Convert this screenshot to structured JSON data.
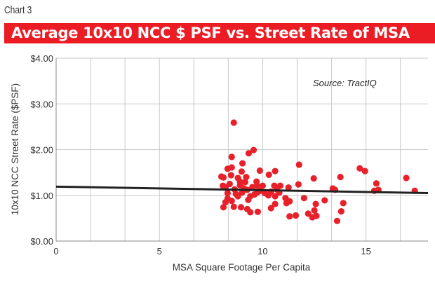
{
  "chart_label": "Chart 3",
  "chart_data": {
    "type": "scatter",
    "title": "Average 10x10 NCC $ PSF vs. Street Rate of MSA",
    "xlabel": "MSA Square Footage Per Capita",
    "ylabel": "10x10 NCC Street Rate ($PSF)",
    "annotation": "Source: TractIQ",
    "xlim": [
      0,
      18
    ],
    "ylim": [
      0,
      4
    ],
    "x_ticks": [
      {
        "v": 0,
        "label": "0"
      },
      {
        "v": 5,
        "label": "5"
      },
      {
        "v": 10,
        "label": "10"
      },
      {
        "v": 15,
        "label": "15"
      }
    ],
    "y_ticks": [
      {
        "v": 0,
        "label": "$0.00"
      },
      {
        "v": 1,
        "label": "$1.00"
      },
      {
        "v": 2,
        "label": "$2.00"
      },
      {
        "v": 3,
        "label": "$3.00"
      },
      {
        "v": 4,
        "label": "$4.00"
      }
    ],
    "grid": true,
    "point_color": "#e8202a",
    "trendline": {
      "x": [
        0,
        18
      ],
      "y": [
        1.19,
        1.05
      ],
      "color": "#222222"
    },
    "points": [
      [
        8.6,
        2.59
      ],
      [
        9.56,
        1.99
      ],
      [
        9.32,
        1.92
      ],
      [
        8.5,
        1.84
      ],
      [
        9.02,
        1.7
      ],
      [
        9.86,
        1.54
      ],
      [
        8.3,
        1.58
      ],
      [
        8.5,
        1.61
      ],
      [
        8.98,
        1.52
      ],
      [
        10.6,
        1.53
      ],
      [
        10.3,
        1.45
      ],
      [
        8.1,
        1.39
      ],
      [
        8.47,
        1.44
      ],
      [
        8.8,
        1.38
      ],
      [
        9.15,
        1.29
      ],
      [
        8.07,
        1.21
      ],
      [
        8.64,
        1.13
      ],
      [
        9.25,
        1.12
      ],
      [
        9.73,
        1.21
      ],
      [
        9.73,
        1.06
      ],
      [
        10.56,
        1.21
      ],
      [
        10.68,
        1.13
      ],
      [
        10.6,
        0.98
      ],
      [
        10.27,
        1.0
      ],
      [
        8.8,
        0.98
      ],
      [
        9.3,
        0.9
      ],
      [
        8.3,
        0.93
      ],
      [
        8.1,
        0.74
      ],
      [
        8.6,
        0.75
      ],
      [
        8.95,
        0.74
      ],
      [
        9.25,
        0.7
      ],
      [
        9.4,
        0.63
      ],
      [
        9.76,
        0.64
      ],
      [
        10.4,
        0.72
      ],
      [
        10.6,
        0.81
      ],
      [
        8.0,
        1.41
      ],
      [
        8.2,
        1.18
      ],
      [
        8.4,
        1.25
      ],
      [
        8.9,
        1.22
      ],
      [
        9.1,
        1.15
      ],
      [
        9.5,
        1.18
      ],
      [
        9.9,
        1.1
      ],
      [
        10.0,
        1.21
      ],
      [
        8.3,
        1.05
      ],
      [
        8.7,
        1.03
      ],
      [
        9.0,
        1.06
      ],
      [
        9.6,
        1.02
      ],
      [
        10.1,
        1.05
      ],
      [
        10.4,
        1.08
      ],
      [
        8.2,
        0.85
      ],
      [
        8.5,
        0.88
      ],
      [
        9.4,
        0.98
      ],
      [
        9.7,
        1.3
      ],
      [
        10.8,
        1.06
      ],
      [
        10.85,
        1.21
      ],
      [
        11.25,
        1.17
      ],
      [
        11.76,
        1.67
      ],
      [
        11.73,
        1.24
      ],
      [
        12.47,
        1.37
      ],
      [
        13.76,
        1.4
      ],
      [
        13.39,
        1.15
      ],
      [
        13.5,
        1.12
      ],
      [
        13.9,
        0.83
      ],
      [
        13.0,
        0.89
      ],
      [
        13.6,
        0.44
      ],
      [
        14.7,
        1.59
      ],
      [
        14.95,
        1.53
      ],
      [
        15.5,
        1.26
      ],
      [
        15.4,
        1.1
      ],
      [
        15.6,
        1.12
      ],
      [
        16.95,
        1.38
      ],
      [
        17.36,
        1.1
      ],
      [
        12.57,
        0.81
      ],
      [
        12.5,
        0.67
      ],
      [
        12.4,
        0.52
      ],
      [
        12.2,
        0.6
      ],
      [
        12.6,
        0.55
      ],
      [
        11.3,
        0.54
      ],
      [
        11.6,
        0.56
      ],
      [
        11.15,
        0.83
      ],
      [
        11.3,
        0.87
      ],
      [
        12.0,
        0.94
      ],
      [
        11.1,
        0.94
      ],
      [
        13.8,
        0.65
      ],
      [
        8.9,
        1.3
      ],
      [
        9.2,
        1.4
      ]
    ]
  }
}
